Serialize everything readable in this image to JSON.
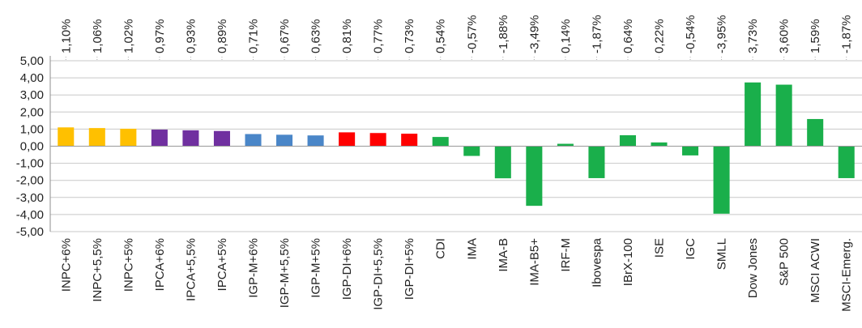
{
  "chart_data": {
    "type": "bar",
    "categories": [
      "INPC+6%",
      "INPC+5,5%",
      "INPC+5%",
      "IPCA+6%",
      "IPCA+5,5%",
      "IPCA+5%",
      "IGP-M+6%",
      "IGP-M+5,5%",
      "IGP-M+5%",
      "IGP-DI+6%",
      "IGP-DI+5,5%",
      "IGP-DI+5%",
      "CDI",
      "IMA",
      "IMA-B",
      "IMA-B5+",
      "IRF-M",
      "Ibovespa",
      "IBrX-100",
      "ISE",
      "IGC",
      "SMLL",
      "Dow Jones",
      "S&P 500",
      "MSCI ACWI",
      "MSCI-Emerg."
    ],
    "values": [
      1.1,
      1.06,
      1.02,
      0.97,
      0.93,
      0.89,
      0.71,
      0.67,
      0.63,
      0.81,
      0.77,
      0.73,
      0.54,
      -0.57,
      -1.88,
      -3.49,
      0.14,
      -1.87,
      0.64,
      0.22,
      -0.54,
      -3.95,
      3.73,
      3.6,
      1.59,
      -1.87
    ],
    "value_labels": [
      "1,10%",
      "1,06%",
      "1,02%",
      "0,97%",
      "0,93%",
      "0,89%",
      "0,71%",
      "0,67%",
      "0,63%",
      "0,81%",
      "0,77%",
      "0,73%",
      "0,54%",
      "-0,57%",
      "-1,88%",
      "-3,49%",
      "0,14%",
      "-1,87%",
      "0,64%",
      "0,22%",
      "-0,54%",
      "-3,95%",
      "3,73%",
      "3,60%",
      "1,59%",
      "-1,87%"
    ],
    "colors": [
      "#FFC000",
      "#FFC000",
      "#FFC000",
      "#7030A0",
      "#7030A0",
      "#7030A0",
      "#4A86C8",
      "#4A86C8",
      "#4A86C8",
      "#FF0000",
      "#FF0000",
      "#FF0000",
      "#1AAF4B",
      "#1AAF4B",
      "#1AAF4B",
      "#1AAF4B",
      "#1AAF4B",
      "#1AAF4B",
      "#1AAF4B",
      "#1AAF4B",
      "#1AAF4B",
      "#1AAF4B",
      "#1AAF4B",
      "#1AAF4B",
      "#1AAF4B",
      "#1AAF4B"
    ],
    "ylim": [
      -5,
      5
    ],
    "yticks": [
      5,
      4,
      3,
      2,
      1,
      0,
      -1,
      -2,
      -3,
      -4,
      -5
    ],
    "ytick_labels": [
      "5,00",
      "4,00",
      "3,00",
      "2,00",
      "1,00",
      "0,00",
      "-1,00",
      "-2,00",
      "-3,00",
      "-4,00",
      "-5,00"
    ],
    "grid": true,
    "title": "",
    "xlabel": "",
    "ylabel": ""
  }
}
